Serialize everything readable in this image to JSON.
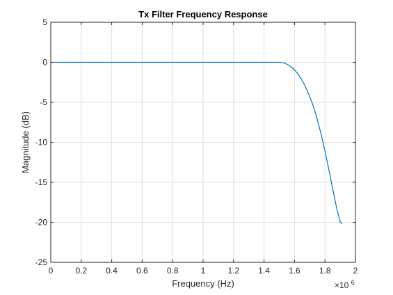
{
  "chart_data": {
    "type": "line",
    "title": "Tx Filter Frequency Response",
    "xlabel": "Frequency (Hz)",
    "ylabel": "Magnitude (dB)",
    "x_exponent_base": "×10",
    "x_exponent_power": "6",
    "xlim": [
      0,
      2
    ],
    "ylim": [
      -25,
      5
    ],
    "grid": true,
    "x_ticks": [
      {
        "value": 0,
        "label": "0"
      },
      {
        "value": 0.2,
        "label": "0.2"
      },
      {
        "value": 0.4,
        "label": "0.4"
      },
      {
        "value": 0.6,
        "label": "0.6"
      },
      {
        "value": 0.8,
        "label": "0.8"
      },
      {
        "value": 1.0,
        "label": "1"
      },
      {
        "value": 1.2,
        "label": "1.2"
      },
      {
        "value": 1.4,
        "label": "1.4"
      },
      {
        "value": 1.6,
        "label": "1.6"
      },
      {
        "value": 1.8,
        "label": "1.8"
      },
      {
        "value": 2.0,
        "label": "2"
      }
    ],
    "y_ticks": [
      {
        "value": 5,
        "label": "5"
      },
      {
        "value": 0,
        "label": "0"
      },
      {
        "value": -5,
        "label": "-5"
      },
      {
        "value": -10,
        "label": "-10"
      },
      {
        "value": -15,
        "label": "-15"
      },
      {
        "value": -20,
        "label": "-20"
      },
      {
        "value": -25,
        "label": "-25"
      }
    ],
    "series": [
      {
        "color": "#0072bd",
        "x": [
          0,
          0.2,
          0.4,
          0.6,
          0.8,
          1.0,
          1.2,
          1.4,
          1.5,
          1.52,
          1.54,
          1.56,
          1.58,
          1.6,
          1.62,
          1.64,
          1.66,
          1.68,
          1.7,
          1.72,
          1.74,
          1.76,
          1.78,
          1.8,
          1.82,
          1.84,
          1.86,
          1.88,
          1.9,
          1.91
        ],
        "y": [
          0,
          0,
          0,
          0,
          0,
          0,
          0,
          0,
          0,
          -0.05,
          -0.15,
          -0.35,
          -0.6,
          -0.95,
          -1.4,
          -1.95,
          -2.6,
          -3.4,
          -4.3,
          -5.3,
          -6.5,
          -7.9,
          -9.4,
          -11.1,
          -12.9,
          -14.8,
          -16.7,
          -18.5,
          -19.9,
          -20.2
        ]
      }
    ]
  }
}
